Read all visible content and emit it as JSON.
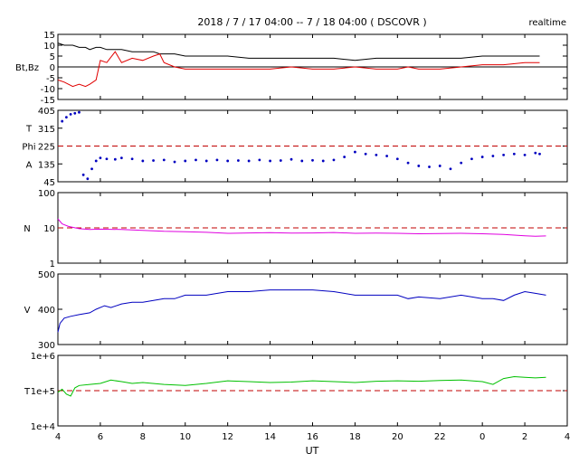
{
  "header": {
    "title": "2018 / 7 / 17  04:00 -- 7 / 18  04:00 ( DSCOVR )",
    "realtime_label": "realtime"
  },
  "x_axis": {
    "label": "UT",
    "ticks": [
      "4",
      "6",
      "8",
      "10",
      "12",
      "14",
      "16",
      "18",
      "20",
      "22",
      "0",
      "2",
      "4"
    ]
  },
  "colors": {
    "bt": "#000000",
    "bz": "#e00000",
    "phi": "#0000c0",
    "density": "#e000e0",
    "speed": "#0000c0",
    "temperature": "#00c000",
    "reference_line": "#c00000"
  },
  "chart_data": [
    {
      "type": "line",
      "panel": "magnetic-field",
      "ylabel": "Bt,Bz",
      "ylim": [
        -15,
        15
      ],
      "yticks": [
        "15",
        "10",
        "5",
        "0",
        "-5",
        "-10",
        "-15"
      ],
      "zero_line": 0,
      "x_hours": [
        0,
        0.3,
        0.7,
        1.0,
        1.3,
        1.5,
        1.8,
        2.0,
        2.3,
        2.7,
        3.0,
        3.5,
        4.0,
        4.5,
        4.8,
        5.0,
        5.5,
        6.0,
        7.0,
        8.0,
        9.0,
        10.0,
        11.0,
        12.0,
        13.0,
        14.0,
        15.0,
        16.0,
        16.5,
        17.0,
        18.0,
        19.0,
        20.0,
        21.0,
        22.0,
        22.7
      ],
      "series": [
        {
          "name": "Bt",
          "values": [
            11,
            10,
            10,
            9,
            9,
            8,
            9,
            9,
            8,
            8,
            8,
            7,
            7,
            7,
            6,
            6,
            6,
            5,
            5,
            5,
            4,
            4,
            4,
            4,
            4,
            3,
            4,
            4,
            4,
            4,
            4,
            4,
            5,
            5,
            5,
            5
          ]
        },
        {
          "name": "Bz",
          "values": [
            -6,
            -7,
            -9,
            -8,
            -9,
            -8,
            -6,
            3,
            2,
            7,
            2,
            4,
            3,
            5,
            6,
            2,
            0,
            -1,
            -1,
            -1,
            -1,
            -1,
            0,
            -1,
            -1,
            0,
            -1,
            -1,
            0,
            -1,
            -1,
            0,
            1,
            1,
            2,
            2
          ]
        }
      ]
    },
    {
      "type": "scatter",
      "panel": "phi-angle",
      "ylabel_lines": [
        "T",
        "Phi",
        "A"
      ],
      "ylim": [
        45,
        405
      ],
      "yticks": [
        "405",
        "315",
        "225",
        "135",
        "45"
      ],
      "reference_line": 225,
      "x_hours": [
        0.2,
        0.4,
        0.6,
        0.8,
        1.0,
        1.2,
        1.4,
        1.6,
        1.8,
        2.0,
        2.3,
        2.7,
        3.0,
        3.5,
        4.0,
        4.5,
        5.0,
        5.5,
        6.0,
        6.5,
        7.0,
        7.5,
        8.0,
        8.5,
        9.0,
        9.5,
        10.0,
        10.5,
        11.0,
        11.5,
        12.0,
        12.5,
        13.0,
        13.5,
        14.0,
        14.5,
        15.0,
        15.5,
        16.0,
        16.5,
        17.0,
        17.5,
        18.0,
        18.5,
        19.0,
        19.5,
        20.0,
        20.5,
        21.0,
        21.5,
        22.0,
        22.5,
        22.7
      ],
      "series": [
        {
          "name": "Phi",
          "values": [
            350,
            370,
            385,
            390,
            395,
            80,
            60,
            110,
            150,
            165,
            160,
            158,
            165,
            160,
            150,
            152,
            155,
            145,
            150,
            155,
            150,
            155,
            150,
            152,
            150,
            155,
            150,
            152,
            158,
            150,
            153,
            150,
            155,
            170,
            195,
            185,
            180,
            175,
            160,
            140,
            125,
            120,
            125,
            110,
            140,
            160,
            170,
            175,
            180,
            185,
            180,
            190,
            185
          ]
        }
      ]
    },
    {
      "type": "line",
      "panel": "density",
      "ylabel": "N",
      "log_scale": true,
      "ylim": [
        1,
        100
      ],
      "yticks": [
        "100",
        "10",
        "1"
      ],
      "reference_line": 10,
      "x_hours": [
        0,
        0.2,
        0.5,
        1.0,
        1.5,
        2.0,
        3.0,
        4.0,
        5.0,
        6.0,
        7.0,
        8.0,
        9.0,
        10.0,
        11.0,
        12.0,
        13.0,
        14.0,
        15.0,
        16.0,
        17.0,
        18.0,
        19.0,
        20.0,
        21.0,
        22.0,
        22.5,
        23.0
      ],
      "series": [
        {
          "name": "N",
          "values": [
            18,
            13,
            11,
            9.5,
            9,
            9.2,
            9,
            8.5,
            8,
            7.8,
            7.5,
            7,
            7.2,
            7.3,
            7.1,
            7.2,
            7.4,
            7,
            7.1,
            7,
            6.8,
            6.9,
            7,
            6.8,
            6.5,
            6,
            5.8,
            5.9
          ]
        }
      ]
    },
    {
      "type": "line",
      "panel": "speed",
      "ylabel": "V",
      "ylim": [
        300,
        500
      ],
      "yticks": [
        "500",
        "400",
        "300"
      ],
      "x_hours": [
        0,
        0.1,
        0.3,
        0.6,
        1.0,
        1.5,
        1.8,
        2.2,
        2.5,
        3.0,
        3.5,
        4.0,
        4.5,
        5.0,
        5.5,
        6.0,
        7.0,
        8.0,
        9.0,
        10.0,
        11.0,
        12.0,
        13.0,
        14.0,
        15.0,
        16.0,
        16.5,
        17.0,
        18.0,
        19.0,
        20.0,
        20.5,
        21.0,
        21.5,
        22.0,
        22.5,
        23.0
      ],
      "series": [
        {
          "name": "V",
          "values": [
            335,
            360,
            375,
            380,
            385,
            390,
            400,
            410,
            405,
            415,
            420,
            420,
            425,
            430,
            430,
            440,
            440,
            450,
            450,
            455,
            455,
            455,
            450,
            440,
            440,
            440,
            430,
            435,
            430,
            440,
            430,
            430,
            425,
            440,
            450,
            445,
            440
          ]
        }
      ]
    },
    {
      "type": "line",
      "panel": "temperature",
      "ylabel": "T",
      "log_scale": true,
      "ylim": [
        10000,
        1000000
      ],
      "yticks": [
        "1e+6",
        "1e+5",
        "1e+4"
      ],
      "reference_line": 100000,
      "x_hours": [
        0,
        0.2,
        0.4,
        0.6,
        0.8,
        1.0,
        1.5,
        2.0,
        2.5,
        3.0,
        3.5,
        4.0,
        5.0,
        6.0,
        7.0,
        8.0,
        9.0,
        10.0,
        11.0,
        12.0,
        13.0,
        14.0,
        15.0,
        16.0,
        17.0,
        18.0,
        19.0,
        20.0,
        20.5,
        21.0,
        21.5,
        22.0,
        22.5,
        23.0
      ],
      "series": [
        {
          "name": "T",
          "values": [
            90000,
            110000,
            80000,
            70000,
            120000,
            140000,
            150000,
            160000,
            200000,
            180000,
            160000,
            170000,
            150000,
            140000,
            160000,
            190000,
            180000,
            170000,
            175000,
            190000,
            180000,
            170000,
            185000,
            190000,
            185000,
            195000,
            200000,
            180000,
            150000,
            220000,
            250000,
            240000,
            230000,
            240000
          ]
        }
      ]
    }
  ]
}
